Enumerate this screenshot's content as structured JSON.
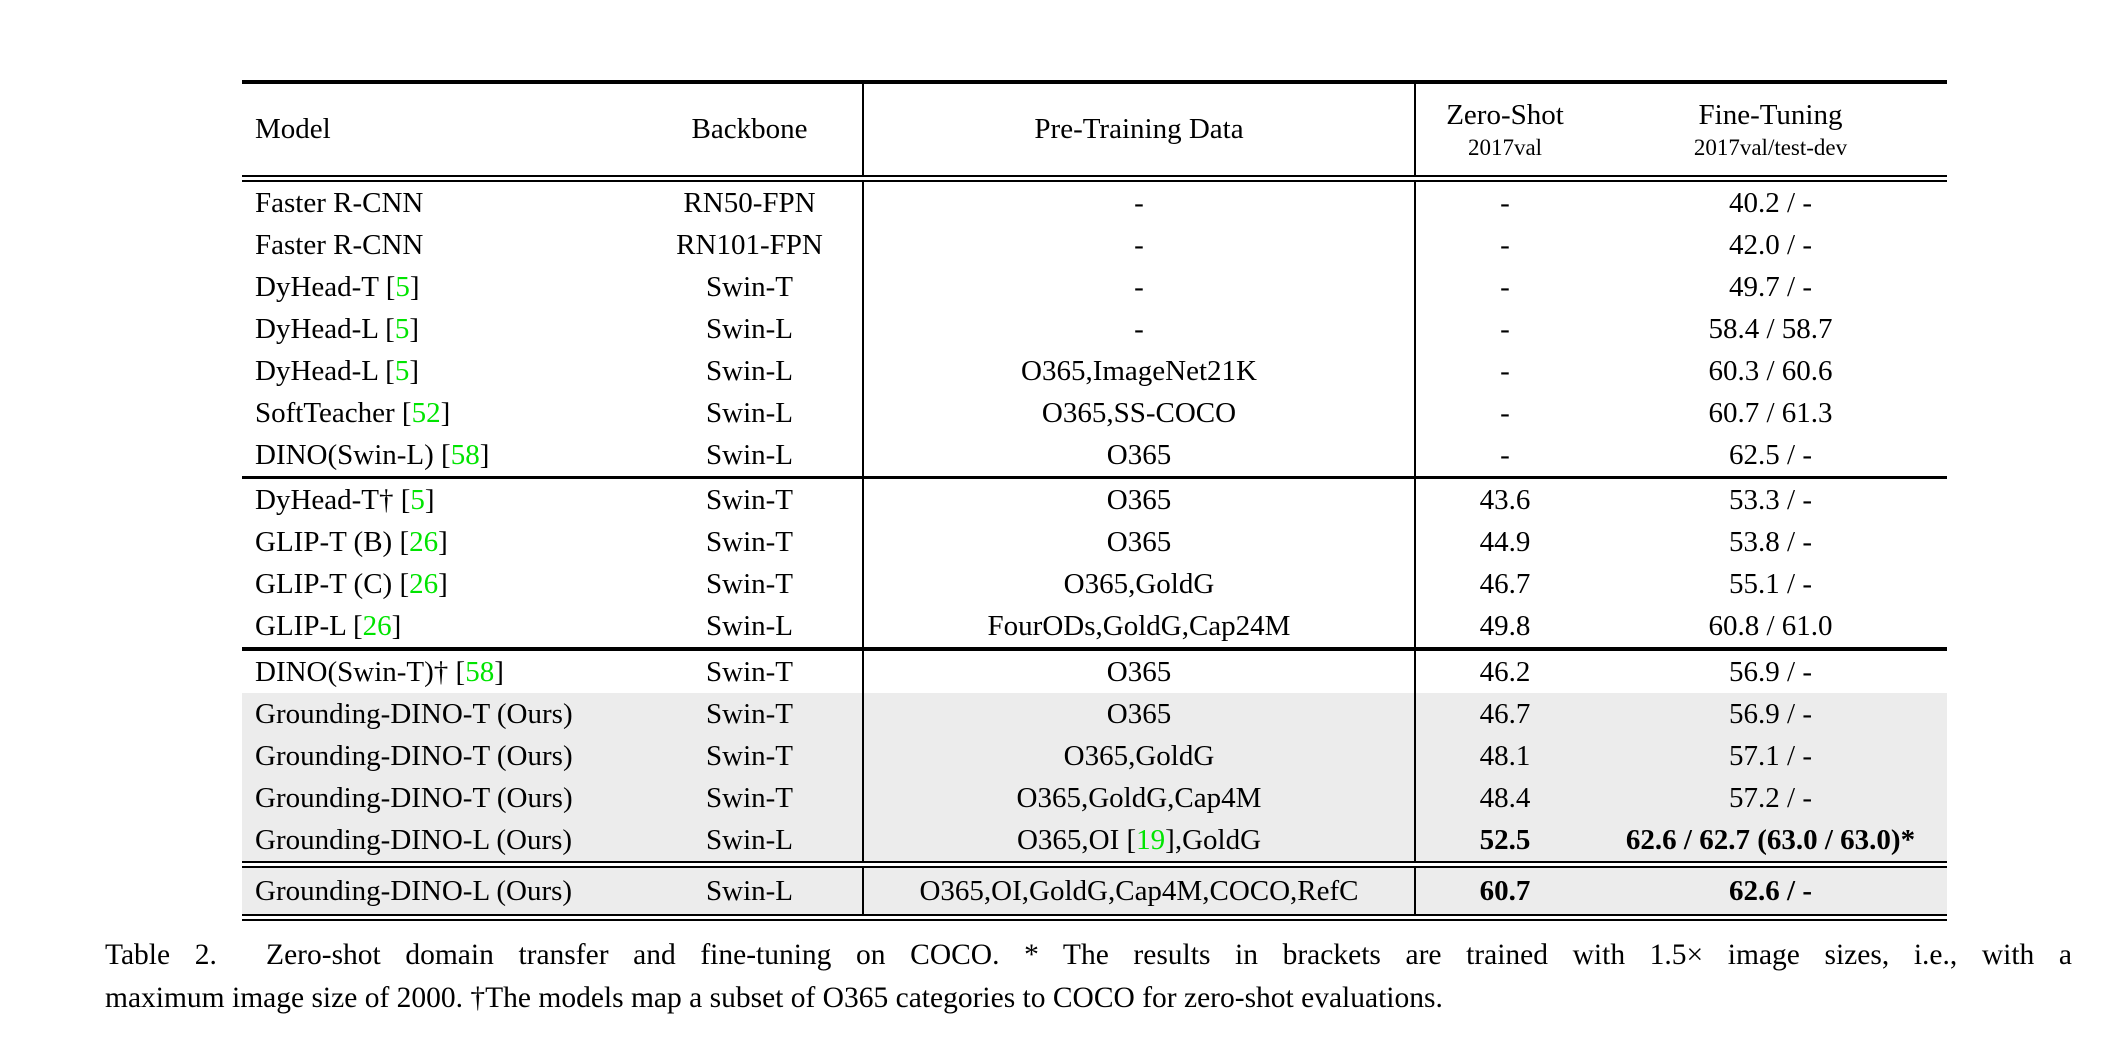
{
  "table": {
    "colors": {
      "citation_green": "#00e400",
      "row_highlight": "#ececec"
    },
    "header": {
      "model": "Model",
      "backbone": "Backbone",
      "pretrain": "Pre-Training Data",
      "zeroshot_line1": "Zero-Shot",
      "zeroshot_line2": "2017val",
      "finetune_line1": "Fine-Tuning",
      "finetune_line2": "2017val/test-dev"
    },
    "groups": [
      {
        "rows": [
          {
            "model": "Faster R-CNN",
            "backbone": "RN50-FPN",
            "pretrain": "-",
            "zeroshot": "-",
            "finetune": "40.2 / -"
          },
          {
            "model": "Faster R-CNN",
            "backbone": "RN101-FPN",
            "pretrain": "-",
            "zeroshot": "-",
            "finetune": "42.0 / -"
          },
          {
            "model": "DyHead-T [5]",
            "backbone": "Swin-T",
            "pretrain": "-",
            "zeroshot": "-",
            "finetune": "49.7 / -"
          },
          {
            "model": "DyHead-L [5]",
            "backbone": "Swin-L",
            "pretrain": "-",
            "zeroshot": "-",
            "finetune": "58.4 / 58.7"
          },
          {
            "model": "DyHead-L [5]",
            "backbone": "Swin-L",
            "pretrain": "O365,ImageNet21K",
            "zeroshot": "-",
            "finetune": "60.3 / 60.6"
          },
          {
            "model": "SoftTeacher [52]",
            "backbone": "Swin-L",
            "pretrain": "O365,SS-COCO",
            "zeroshot": "-",
            "finetune": "60.7 / 61.3"
          },
          {
            "model": "DINO(Swin-L) [58]",
            "backbone": "Swin-L",
            "pretrain": "O365",
            "zeroshot": "-",
            "finetune": "62.5 / -"
          }
        ]
      },
      {
        "rows": [
          {
            "model": "DyHead-T† [5]",
            "backbone": "Swin-T",
            "pretrain": "O365",
            "zeroshot": "43.6",
            "finetune": "53.3 / -"
          },
          {
            "model": "GLIP-T (B) [26]",
            "backbone": "Swin-T",
            "pretrain": "O365",
            "zeroshot": "44.9",
            "finetune": "53.8 / -"
          },
          {
            "model": "GLIP-T (C) [26]",
            "backbone": "Swin-T",
            "pretrain": "O365,GoldG",
            "zeroshot": "46.7",
            "finetune": "55.1 / -"
          },
          {
            "model": "GLIP-L [26]",
            "backbone": "Swin-L",
            "pretrain": "FourODs,GoldG,Cap24M",
            "zeroshot": "49.8",
            "finetune": "60.8 / 61.0"
          }
        ]
      },
      {
        "rows": [
          {
            "model": "DINO(Swin-T)† [58]",
            "backbone": "Swin-T",
            "pretrain": "O365",
            "zeroshot": "46.2",
            "finetune": "56.9 / -"
          },
          {
            "model": "Grounding-DINO-T (Ours)",
            "backbone": "Swin-T",
            "pretrain": "O365",
            "zeroshot": "46.7",
            "finetune": "56.9 / -",
            "highlight": true
          },
          {
            "model": "Grounding-DINO-T (Ours)",
            "backbone": "Swin-T",
            "pretrain": "O365,GoldG",
            "zeroshot": "48.1",
            "finetune": "57.1 / -",
            "highlight": true
          },
          {
            "model": "Grounding-DINO-T (Ours)",
            "backbone": "Swin-T",
            "pretrain": "O365,GoldG,Cap4M",
            "zeroshot": "48.4",
            "finetune": "57.2 / -",
            "highlight": true
          },
          {
            "model": "Grounding-DINO-L (Ours)",
            "backbone": "Swin-L",
            "pretrain": "O365,OI [19],GoldG",
            "zeroshot": "52.5",
            "finetune": "62.6 / 62.7 (63.0 / 63.0)*",
            "highlight": true,
            "bold_zs": true,
            "bold_ft": true
          }
        ]
      },
      {
        "rows": [
          {
            "model": "Grounding-DINO-L (Ours)",
            "backbone": "Swin-L",
            "pretrain": "O365,OI,GoldG,Cap4M,COCO,RefC",
            "zeroshot": "60.7",
            "finetune": "62.6 / -",
            "highlight": true,
            "bold_zs": true,
            "bold_ft": true,
            "tall": true
          }
        ]
      }
    ]
  },
  "caption": {
    "line1": "Table 2.  Zero-shot domain transfer and fine-tuning on COCO. * The results in brackets are trained with 1.5× image sizes, i.e., with a",
    "line2": "maximum image size of 2000. †The models map a subset of O365 categories to COCO for zero-shot evaluations."
  }
}
